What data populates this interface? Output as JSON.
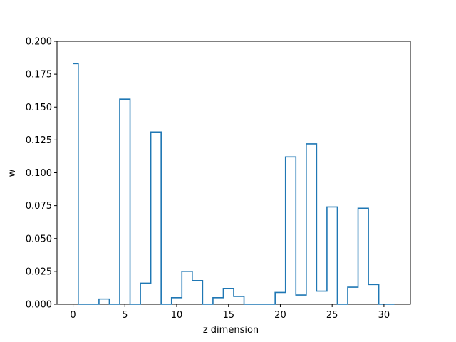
{
  "chart_data": {
    "type": "step",
    "xlabel": "z dimension",
    "ylabel": "w",
    "xlim": [
      -1.55,
      32.55
    ],
    "ylim": [
      0.0,
      0.2
    ],
    "xticks": [
      0,
      5,
      10,
      15,
      20,
      25,
      30
    ],
    "xtick_labels": [
      "0",
      "5",
      "10",
      "15",
      "20",
      "25",
      "30"
    ],
    "yticks": [
      0.0,
      0.025,
      0.05,
      0.075,
      0.1,
      0.125,
      0.15,
      0.175,
      0.2
    ],
    "ytick_labels": [
      "0.000",
      "0.025",
      "0.050",
      "0.075",
      "0.100",
      "0.125",
      "0.150",
      "0.175",
      "0.200"
    ],
    "grid": false,
    "series": [
      {
        "color": "#1f77b4",
        "step_where": "mid",
        "x": [
          0,
          1,
          2,
          3,
          4,
          5,
          6,
          7,
          8,
          9,
          10,
          11,
          12,
          13,
          14,
          15,
          16,
          17,
          18,
          19,
          20,
          21,
          22,
          23,
          24,
          25,
          26,
          27,
          28,
          29,
          30,
          31
        ],
        "values": [
          0.183,
          0.0,
          0.0,
          0.004,
          0.0,
          0.156,
          0.0,
          0.016,
          0.131,
          0.0,
          0.005,
          0.025,
          0.018,
          0.0,
          0.005,
          0.012,
          0.006,
          0.0,
          0.0,
          0.0,
          0.009,
          0.112,
          0.007,
          0.122,
          0.01,
          0.074,
          0.0,
          0.013,
          0.073,
          0.015,
          0.0,
          0.0
        ]
      }
    ]
  }
}
